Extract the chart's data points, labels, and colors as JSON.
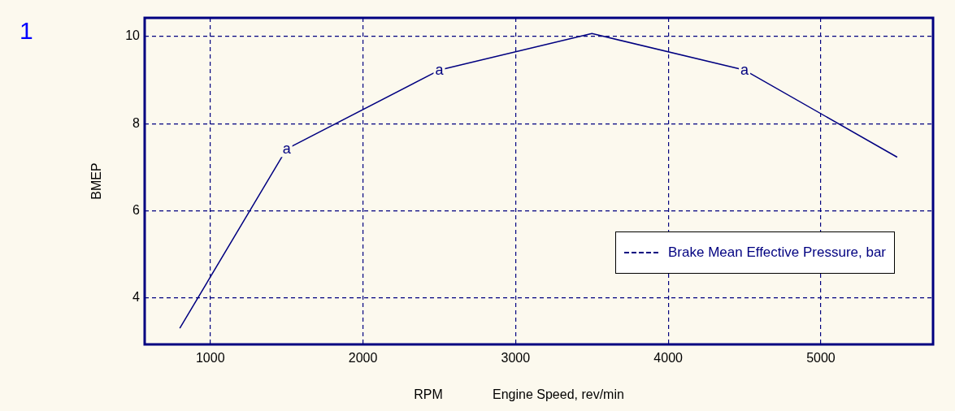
{
  "chart_data": {
    "type": "line",
    "xlabel": "RPM",
    "ylabel": "BMEP",
    "x": [
      800,
      1500,
      2500,
      3500,
      4500,
      5500
    ],
    "series": [
      {
        "name": "Brake Mean Effective Pressure, bar",
        "color": "#000080",
        "values": [
          3.3,
          7.42,
          9.23,
          10.07,
          9.23,
          7.23
        ]
      }
    ],
    "xlim": [
      570,
      5735
    ],
    "xticks": [
      1000,
      2000,
      3000,
      4000,
      5000
    ],
    "ylim": [
      2.93,
      10.43
    ],
    "yticks": [
      4,
      6,
      8,
      10
    ],
    "grid": true,
    "legend": "right",
    "line_style": "solid",
    "annotations": [
      "1",
      "Engine Speed, rev/min",
      {
        "text": "a",
        "x": 1500,
        "y": 7.42
      },
      {
        "text": "a",
        "x": 2500,
        "y": 9.23
      },
      {
        "text": "a",
        "x": 4500,
        "y": 9.23
      }
    ]
  }
}
